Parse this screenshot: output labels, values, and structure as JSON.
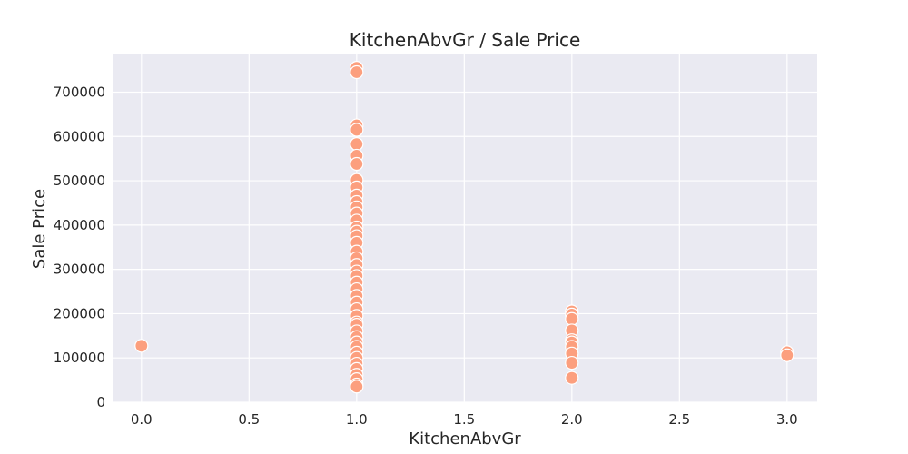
{
  "chart_data": {
    "type": "scatter",
    "title": "KitchenAbvGr / Sale Price",
    "xlabel": "KitchenAbvGr",
    "ylabel": "Sale Price",
    "xlim": [
      -0.13,
      3.14
    ],
    "ylim": [
      0,
      785000
    ],
    "xticks": [
      0.0,
      0.5,
      1.0,
      1.5,
      2.0,
      2.5,
      3.0
    ],
    "xtick_labels": [
      "0.0",
      "0.5",
      "1.0",
      "1.5",
      "2.0",
      "2.5",
      "3.0"
    ],
    "yticks": [
      0,
      100000,
      200000,
      300000,
      400000,
      500000,
      600000,
      700000
    ],
    "ytick_labels": [
      "0",
      "100000",
      "200000",
      "300000",
      "400000",
      "500000",
      "600000",
      "700000"
    ],
    "grid": true,
    "colors": {
      "background": "#eaeaf2",
      "grid": "#ffffff",
      "marker": "#fc9f7e",
      "marker_edge": "#ffffff",
      "text": "#262626"
    },
    "points": [
      {
        "x": 0,
        "y": 127500
      },
      {
        "x": 1,
        "y": 755000
      },
      {
        "x": 1,
        "y": 745000
      },
      {
        "x": 1,
        "y": 625000
      },
      {
        "x": 1,
        "y": 615000
      },
      {
        "x": 1,
        "y": 582900
      },
      {
        "x": 1,
        "y": 556581
      },
      {
        "x": 1,
        "y": 538000
      },
      {
        "x": 1,
        "y": 501837
      },
      {
        "x": 1,
        "y": 485000
      },
      {
        "x": 1,
        "y": 466500
      },
      {
        "x": 1,
        "y": 451950
      },
      {
        "x": 1,
        "y": 440000
      },
      {
        "x": 1,
        "y": 426000
      },
      {
        "x": 1,
        "y": 410000
      },
      {
        "x": 1,
        "y": 394617
      },
      {
        "x": 1,
        "y": 385000
      },
      {
        "x": 1,
        "y": 375000
      },
      {
        "x": 1,
        "y": 360000
      },
      {
        "x": 1,
        "y": 340000
      },
      {
        "x": 1,
        "y": 325000
      },
      {
        "x": 1,
        "y": 310000
      },
      {
        "x": 1,
        "y": 295000
      },
      {
        "x": 1,
        "y": 285000
      },
      {
        "x": 1,
        "y": 270000
      },
      {
        "x": 1,
        "y": 255000
      },
      {
        "x": 1,
        "y": 240000
      },
      {
        "x": 1,
        "y": 225000
      },
      {
        "x": 1,
        "y": 210000
      },
      {
        "x": 1,
        "y": 195000
      },
      {
        "x": 1,
        "y": 180000
      },
      {
        "x": 1,
        "y": 175000
      },
      {
        "x": 1,
        "y": 160000
      },
      {
        "x": 1,
        "y": 147000
      },
      {
        "x": 1,
        "y": 135000
      },
      {
        "x": 1,
        "y": 125000
      },
      {
        "x": 1,
        "y": 112000
      },
      {
        "x": 1,
        "y": 100000
      },
      {
        "x": 1,
        "y": 87000
      },
      {
        "x": 1,
        "y": 75000
      },
      {
        "x": 1,
        "y": 62000
      },
      {
        "x": 1,
        "y": 52000
      },
      {
        "x": 1,
        "y": 40000
      },
      {
        "x": 1,
        "y": 35311
      },
      {
        "x": 2,
        "y": 205000
      },
      {
        "x": 2,
        "y": 198000
      },
      {
        "x": 2,
        "y": 188000
      },
      {
        "x": 2,
        "y": 162000
      },
      {
        "x": 2,
        "y": 140000
      },
      {
        "x": 2,
        "y": 135000
      },
      {
        "x": 2,
        "y": 125000
      },
      {
        "x": 2,
        "y": 110000
      },
      {
        "x": 2,
        "y": 89000
      },
      {
        "x": 2,
        "y": 55000
      },
      {
        "x": 3,
        "y": 113000
      },
      {
        "x": 3,
        "y": 106000
      }
    ]
  }
}
